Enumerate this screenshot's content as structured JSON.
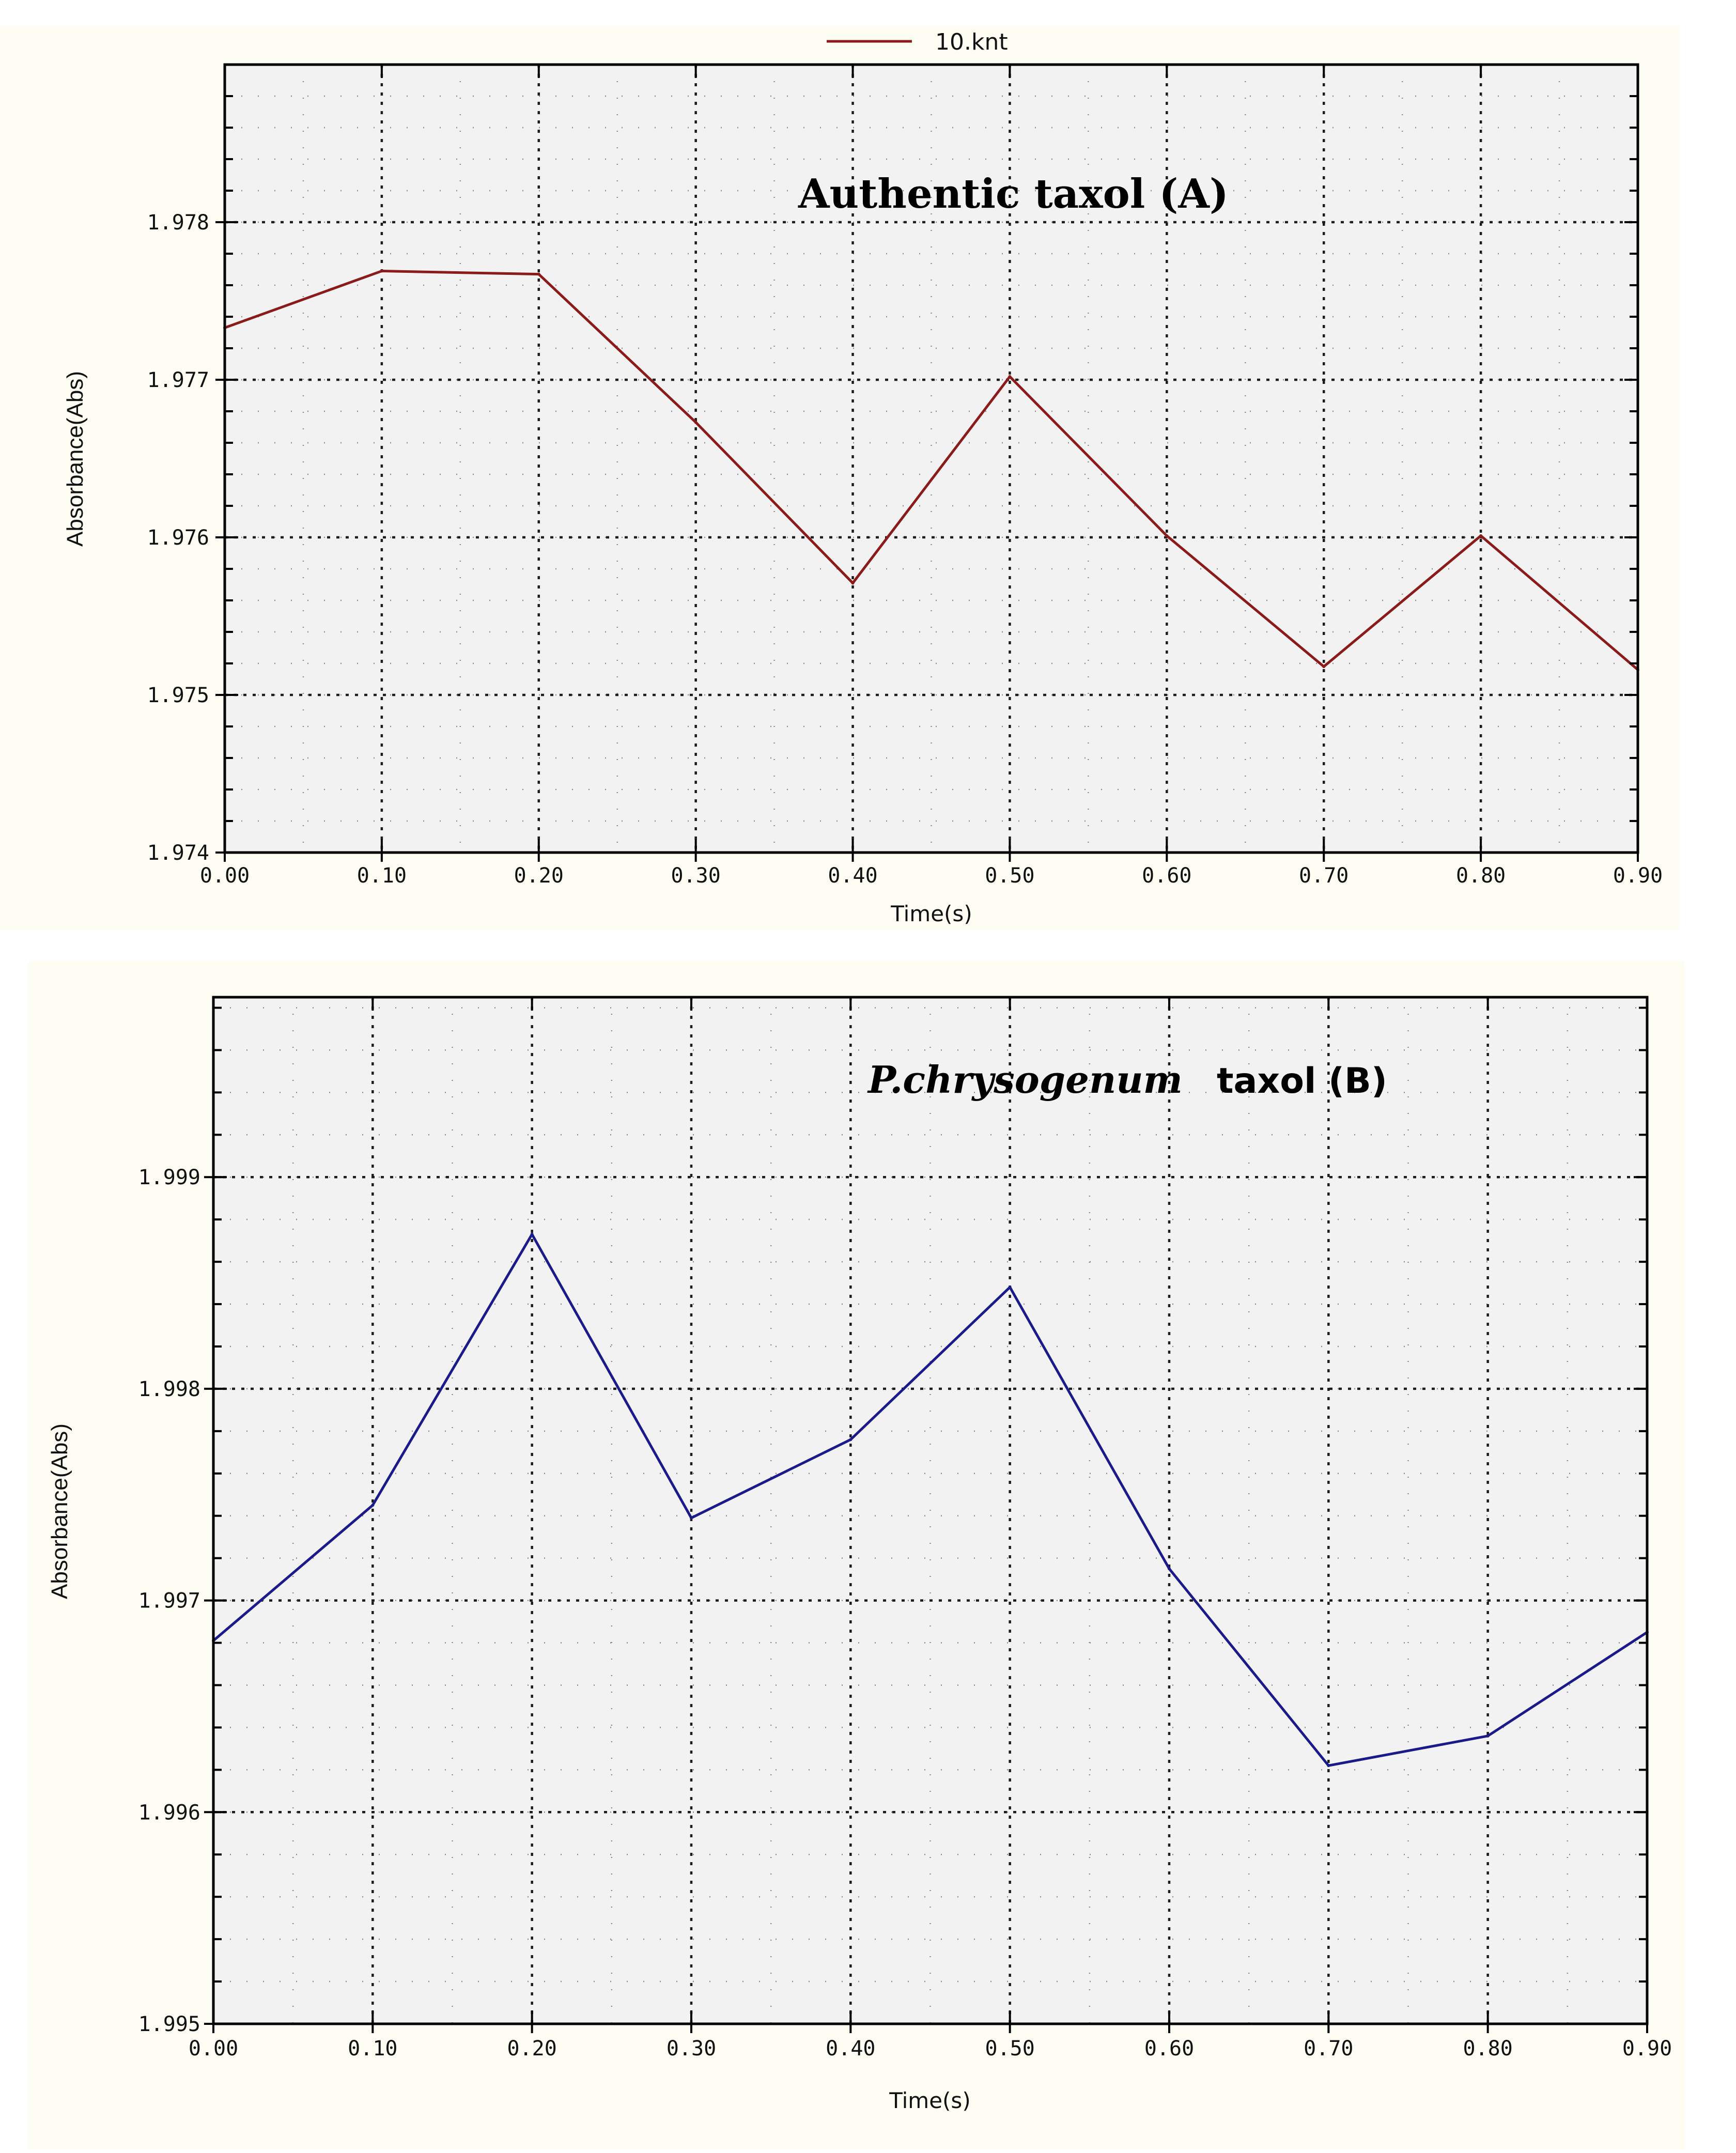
{
  "chart_data": [
    {
      "type": "line",
      "title": "Authentic taxol (A)",
      "xlabel": "Time(s)",
      "ylabel": "Absorbance(Abs)",
      "x": [
        0.0,
        0.1,
        0.2,
        0.3,
        0.4,
        0.5,
        0.6,
        0.7,
        0.8,
        0.9
      ],
      "xlim": [
        0.0,
        0.9
      ],
      "ylim": [
        1.974,
        1.979
      ],
      "x_ticks": [
        "0.00",
        "0.10",
        "0.20",
        "0.30",
        "0.40",
        "0.50",
        "0.60",
        "0.70",
        "0.80",
        "0.90"
      ],
      "y_ticks": [
        "1.974",
        "1.975",
        "1.976",
        "1.977",
        "1.978"
      ],
      "y_tick_values": [
        1.974,
        1.975,
        1.976,
        1.977,
        1.978
      ],
      "grid": true,
      "legend_position": "top-center",
      "series": [
        {
          "name": "10.knt",
          "color": "#8b1a1a",
          "values": [
            1.97733,
            1.97769,
            1.97767,
            1.97673,
            1.97571,
            1.97702,
            1.97601,
            1.97518,
            1.97601,
            1.97516
          ]
        }
      ]
    },
    {
      "type": "line",
      "title_italic": "P.chrysogenum",
      "title_plain": "taxol (B)",
      "xlabel": "Time(s)",
      "ylabel": "Absorbance(Abs)",
      "x": [
        0.0,
        0.1,
        0.2,
        0.3,
        0.4,
        0.5,
        0.6,
        0.7,
        0.8,
        0.9
      ],
      "xlim": [
        0.0,
        0.9
      ],
      "ylim": [
        1.995,
        1.99985
      ],
      "x_ticks": [
        "0.00",
        "0.10",
        "0.20",
        "0.30",
        "0.40",
        "0.50",
        "0.60",
        "0.70",
        "0.80",
        "0.90"
      ],
      "y_ticks": [
        "1.995",
        "1.996",
        "1.997",
        "1.998",
        "1.999"
      ],
      "y_tick_values": [
        1.995,
        1.996,
        1.997,
        1.998,
        1.999
      ],
      "grid": true,
      "series": [
        {
          "color": "#1a1a8b",
          "values": [
            1.99681,
            1.99745,
            1.99873,
            1.99739,
            1.99776,
            1.99848,
            1.99715,
            1.99622,
            1.99636,
            1.99685
          ]
        }
      ]
    }
  ]
}
